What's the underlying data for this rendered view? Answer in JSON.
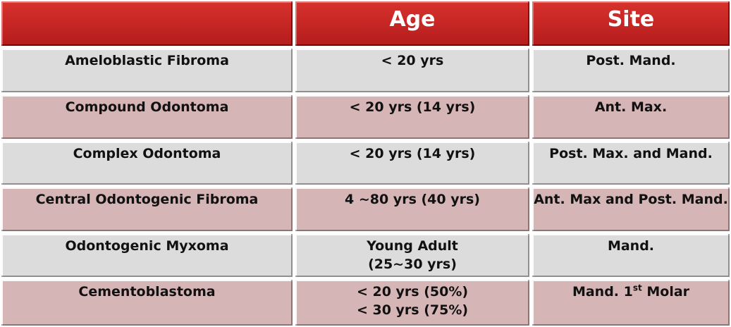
{
  "header": {
    "col1": "",
    "col2": "Age",
    "col3": "Site"
  },
  "rows": [
    {
      "name": "Ameloblastic Fibroma",
      "age": [
        "< 20 yrs"
      ],
      "site": "Post. Mand."
    },
    {
      "name": "Compound Odontoma",
      "age": [
        "< 20 yrs (14 yrs)"
      ],
      "site": "Ant. Max."
    },
    {
      "name": "Complex Odontoma",
      "age": [
        "< 20 yrs (14 yrs)"
      ],
      "site": "Post. Max. and Mand."
    },
    {
      "name": "Central Odontogenic Fibroma",
      "age": [
        "4 ~80 yrs (40 yrs)"
      ],
      "site": "Ant. Max and Post. Mand."
    },
    {
      "name": "Odontogenic Myxoma",
      "age": [
        "Young Adult",
        "(25~30 yrs)"
      ],
      "site": "Mand."
    },
    {
      "name": "Cementoblastoma",
      "age": [
        "< 20 yrs (50%)",
        "< 30 yrs (75%)"
      ],
      "site_prefix": "Mand. 1",
      "site_sup": "st",
      "site_suffix": " Molar"
    }
  ]
}
